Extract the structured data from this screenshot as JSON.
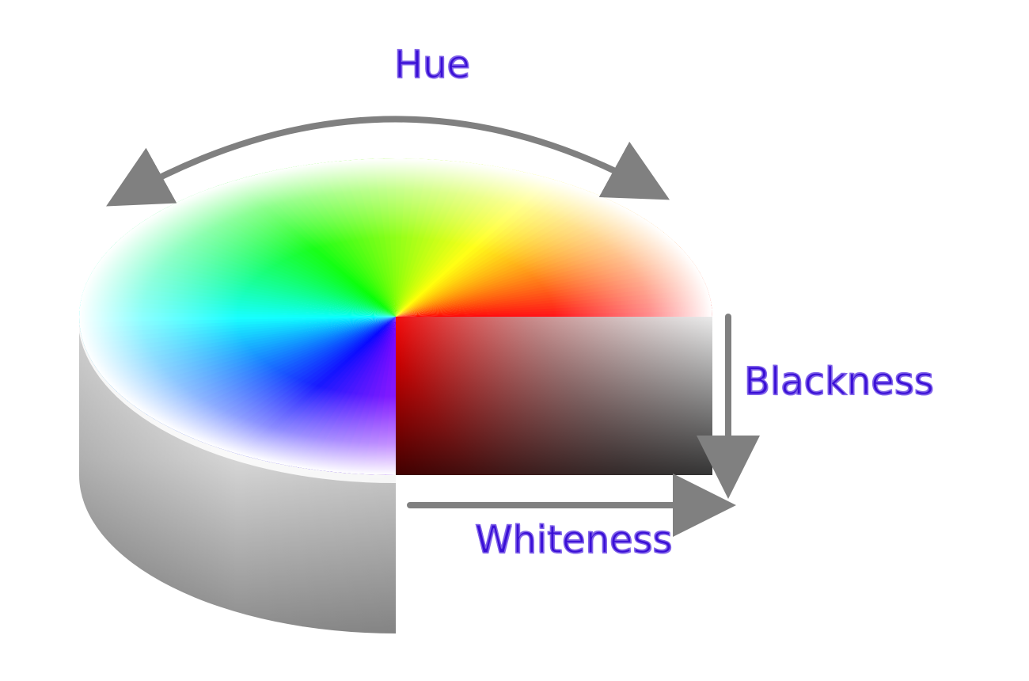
{
  "labels": {
    "hue": "Hue",
    "blackness": "Blackness",
    "whiteness": "Whiteness"
  },
  "colors": {
    "label_text": "#3a0fd6",
    "label_outline": "#8d6ff0",
    "arrow": "#808080",
    "background": "#ffffff"
  },
  "hue_wheel_colors": [
    "#ff0000",
    "#ffff00",
    "#00ff00",
    "#00ffff",
    "#0000ff",
    "#ff00ff"
  ],
  "cut_section": {
    "hue": "#ff0000",
    "corner_dark": "#333333",
    "corner_light": "#ffffff"
  }
}
